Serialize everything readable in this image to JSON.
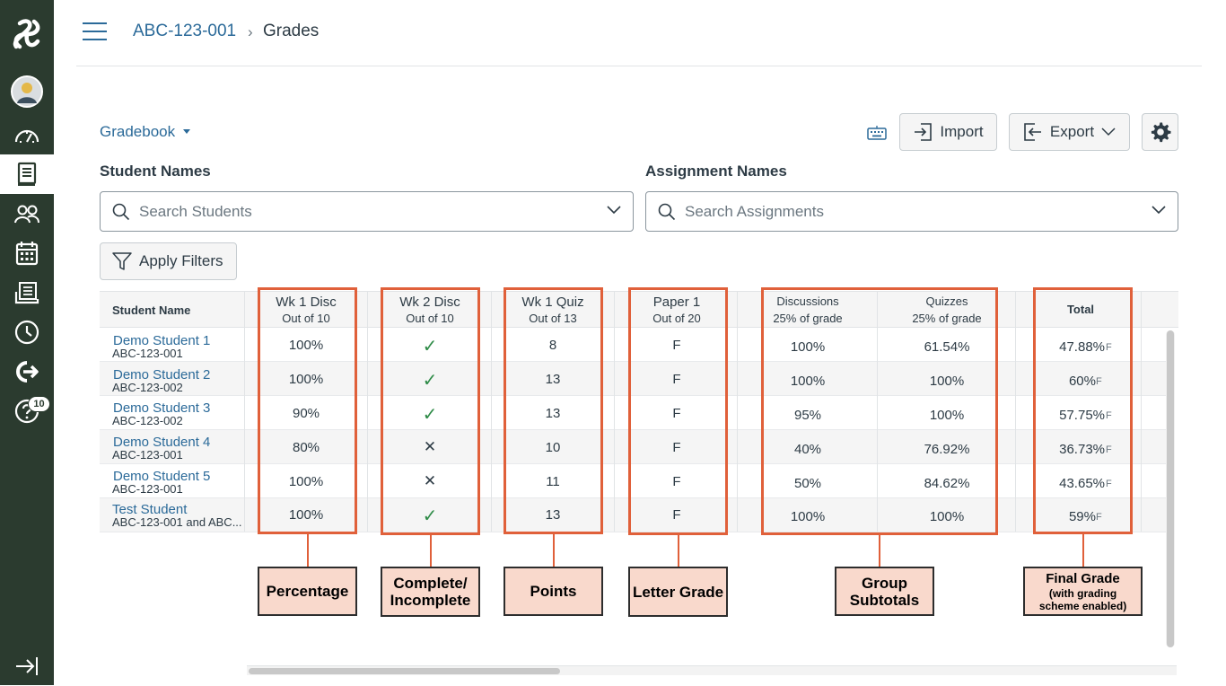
{
  "nav": {
    "notifications_badge": "10"
  },
  "breadcrumb": {
    "course": "ABC-123-001",
    "separator": "›",
    "current": "Grades"
  },
  "toolbar": {
    "gradebook_menu": "Gradebook",
    "import_label": "Import",
    "export_label": "Export"
  },
  "filters": {
    "student_names_label": "Student Names",
    "student_search_placeholder": "Search Students",
    "assignment_names_label": "Assignment Names",
    "assignment_search_placeholder": "Search Assignments",
    "apply_filters_label": "Apply Filters"
  },
  "grid": {
    "student_col_header": "Student Name",
    "columns": [
      {
        "title": "Wk 1 Disc",
        "sub": "Out of 10"
      },
      {
        "title": "Wk 2 Disc",
        "sub": "Out of 10"
      },
      {
        "title": "Wk 1 Quiz",
        "sub": "Out of 13"
      },
      {
        "title": "Paper 1",
        "sub": "Out of 20"
      },
      {
        "title": "Discussions",
        "sub": "25% of grade"
      },
      {
        "title": "Quizzes",
        "sub": "25% of grade"
      },
      {
        "title": "Total",
        "sub": ""
      }
    ],
    "rows": [
      {
        "name": "Demo Student 1",
        "section": "ABC-123-001",
        "wk1disc": "100%",
        "wk2disc": "✓",
        "wk1quiz": "8",
        "paper1": "F",
        "discussions": "100%",
        "quizzes": "61.54%",
        "total": "47.88%",
        "letter": "F"
      },
      {
        "name": "Demo Student 2",
        "section": "ABC-123-002",
        "wk1disc": "100%",
        "wk2disc": "✓",
        "wk1quiz": "13",
        "paper1": "F",
        "discussions": "100%",
        "quizzes": "100%",
        "total": "60%",
        "letter": "F"
      },
      {
        "name": "Demo Student 3",
        "section": "ABC-123-002",
        "wk1disc": "90%",
        "wk2disc": "✓",
        "wk1quiz": "13",
        "paper1": "F",
        "discussions": "95%",
        "quizzes": "100%",
        "total": "57.75%",
        "letter": "F"
      },
      {
        "name": "Demo Student 4",
        "section": "ABC-123-001",
        "wk1disc": "80%",
        "wk2disc": "✕",
        "wk1quiz": "10",
        "paper1": "F",
        "discussions": "40%",
        "quizzes": "76.92%",
        "total": "36.73%",
        "letter": "F"
      },
      {
        "name": "Demo Student 5",
        "section": "ABC-123-001",
        "wk1disc": "100%",
        "wk2disc": "✕",
        "wk1quiz": "11",
        "paper1": "F",
        "discussions": "50%",
        "quizzes": "84.62%",
        "total": "43.65%",
        "letter": "F"
      },
      {
        "name": "Test Student",
        "section": "ABC-123-001 and ABC...",
        "wk1disc": "100%",
        "wk2disc": "✓",
        "wk1quiz": "13",
        "paper1": "F",
        "discussions": "100%",
        "quizzes": "100%",
        "total": "59%",
        "letter": "F"
      }
    ]
  },
  "callouts": {
    "percentage": "Percentage",
    "complete_line1": "Complete/",
    "complete_line2": "Incomplete",
    "points": "Points",
    "letter_grade": "Letter Grade",
    "group_line1": "Group",
    "group_line2": "Subtotals",
    "final_line1": "Final Grade",
    "final_line2": "(with grading",
    "final_line3": "scheme enabled)"
  },
  "colors": {
    "nav_bg": "#2b3b2f",
    "link": "#2b6a99",
    "highlight": "#e0603a",
    "callout_bg": "#f9d9cc",
    "check": "#2e8b47"
  }
}
